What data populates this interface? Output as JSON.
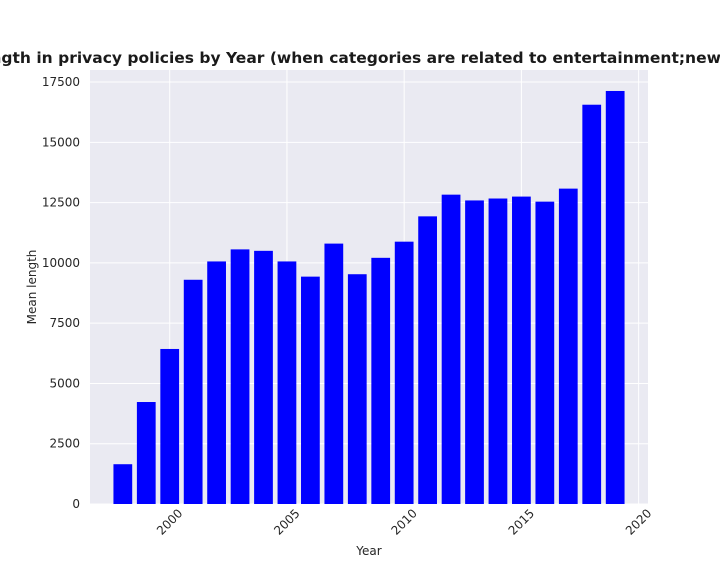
{
  "chart_data": {
    "type": "bar",
    "title": "Mean length in privacy policies by Year (when categories are related to entertainment;newsandmedia",
    "xlabel": "Year",
    "ylabel": "Mean length",
    "x": [
      1998,
      1999,
      2000,
      2001,
      2002,
      2003,
      2004,
      2005,
      2006,
      2007,
      2008,
      2009,
      2010,
      2011,
      2012,
      2013,
      2014,
      2015,
      2016,
      2017,
      2018,
      2019
    ],
    "values": [
      1650,
      4230,
      6430,
      9300,
      10060,
      10560,
      10500,
      10060,
      9430,
      10800,
      9530,
      10210,
      10880,
      11930,
      12830,
      12590,
      12670,
      12750,
      12540,
      13080,
      16560,
      17130
    ],
    "xlim": [
      1996.6,
      2020.4
    ],
    "ylim": [
      0,
      18000
    ],
    "xticks": [
      2000,
      2005,
      2010,
      2015,
      2020
    ],
    "yticks": [
      0,
      2500,
      5000,
      7500,
      10000,
      12500,
      15000,
      17500
    ],
    "bar_color": "#0000ff",
    "plot_background": "#eaeaf2",
    "grid_color": "#ffffff",
    "grid": true
  }
}
